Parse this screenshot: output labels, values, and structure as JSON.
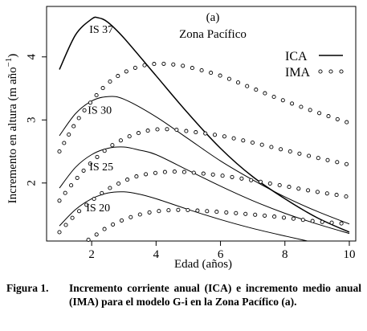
{
  "chart_data": {
    "type": "line",
    "panel_label": "(a)",
    "title": "Zona Pacífico",
    "xlabel": "Edad (años)",
    "ylabel": "Incremento en altura (m año",
    "ylabel_sup": "−1",
    "ylabel_close": ")",
    "xlim": [
      0.6,
      10.2
    ],
    "ylim": [
      1.08,
      4.8
    ],
    "xticks": [
      2,
      4,
      6,
      8,
      10
    ],
    "yticks": [
      2,
      3,
      4
    ],
    "grid": false,
    "legend": {
      "position": "top-right",
      "items": [
        {
          "label": "ICA",
          "style": "line"
        },
        {
          "label": "IMA",
          "style": "circles"
        }
      ]
    },
    "series": [
      {
        "type": "ICA",
        "curve_label": "IS 37",
        "x": [
          1.0,
          1.5,
          2.0,
          2.2,
          2.5,
          3.0,
          4.0,
          5.0,
          6.0,
          7.0,
          8.0,
          9.0,
          10.0
        ],
        "y": [
          3.8,
          4.35,
          4.6,
          4.62,
          4.55,
          4.3,
          3.7,
          3.1,
          2.55,
          2.1,
          1.75,
          1.45,
          1.22
        ]
      },
      {
        "type": "ICA",
        "curve_label": "IS 30",
        "x": [
          1.0,
          1.5,
          2.0,
          2.5,
          3.0,
          4.0,
          5.0,
          6.0,
          7.0,
          8.0,
          9.0,
          10.0
        ],
        "y": [
          2.75,
          3.1,
          3.3,
          3.37,
          3.33,
          3.05,
          2.7,
          2.35,
          2.05,
          1.78,
          1.55,
          1.35
        ]
      },
      {
        "type": "ICA",
        "curve_label": "IS 25",
        "x": [
          1.0,
          1.5,
          2.0,
          2.5,
          3.0,
          3.5,
          4.0,
          5.0,
          6.0,
          7.0,
          8.0,
          9.0,
          10.0
        ],
        "y": [
          1.92,
          2.25,
          2.45,
          2.55,
          2.57,
          2.52,
          2.45,
          2.2,
          1.95,
          1.72,
          1.52,
          1.35,
          1.2
        ]
      },
      {
        "type": "ICA",
        "curve_label": "IS 20",
        "x": [
          1.0,
          1.5,
          2.0,
          2.5,
          3.0,
          3.5,
          4.0,
          5.0,
          6.0,
          7.0,
          8.0,
          8.7
        ],
        "y": [
          1.32,
          1.58,
          1.75,
          1.84,
          1.86,
          1.82,
          1.75,
          1.58,
          1.42,
          1.28,
          1.16,
          1.08
        ]
      },
      {
        "type": "IMA",
        "x": [
          1.0,
          1.5,
          2.0,
          2.5,
          3.0,
          3.5,
          4.0,
          4.5,
          5.0,
          6.0,
          7.0,
          8.0,
          9.0,
          10.0
        ],
        "y": [
          2.5,
          2.95,
          3.3,
          3.58,
          3.75,
          3.85,
          3.89,
          3.88,
          3.84,
          3.7,
          3.5,
          3.3,
          3.12,
          2.95
        ]
      },
      {
        "type": "IMA",
        "x": [
          1.0,
          1.5,
          2.0,
          2.5,
          3.0,
          3.5,
          4.0,
          4.5,
          5.0,
          6.0,
          7.0,
          8.0,
          9.0,
          10.0
        ],
        "y": [
          1.72,
          2.05,
          2.33,
          2.55,
          2.7,
          2.8,
          2.85,
          2.85,
          2.82,
          2.75,
          2.64,
          2.52,
          2.4,
          2.29
        ]
      },
      {
        "type": "IMA",
        "x": [
          1.0,
          1.5,
          2.0,
          2.5,
          3.0,
          3.5,
          4.0,
          4.5,
          5.0,
          6.0,
          7.0,
          8.0,
          9.0,
          10.0
        ],
        "y": [
          1.22,
          1.5,
          1.72,
          1.9,
          2.03,
          2.12,
          2.16,
          2.18,
          2.17,
          2.12,
          2.04,
          1.95,
          1.86,
          1.78
        ]
      },
      {
        "type": "IMA",
        "x": [
          1.9,
          2.2,
          2.5,
          3.0,
          3.5,
          4.0,
          4.5,
          5.0,
          6.0,
          7.0,
          8.0,
          9.0,
          10.0
        ],
        "y": [
          1.1,
          1.2,
          1.3,
          1.42,
          1.5,
          1.55,
          1.57,
          1.57,
          1.54,
          1.5,
          1.45,
          1.39,
          1.35
        ]
      }
    ]
  },
  "caption": {
    "label": "Figura 1.",
    "text": "Incremento corriente anual (ICA) e incremento medio anual (IMA) para el modelo G-i en la Zona Pacífico (a)."
  }
}
